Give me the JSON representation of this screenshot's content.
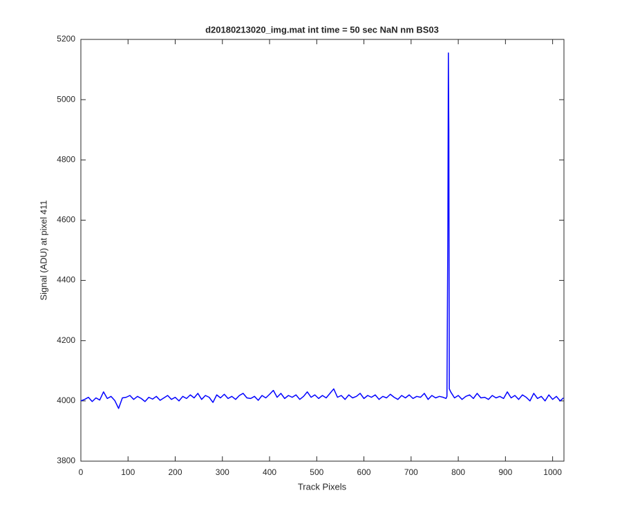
{
  "chart_data": {
    "type": "line",
    "title": "d20180213020_img.mat int time = 50 sec  NaN nm BS03",
    "xlabel": "Track Pixels",
    "ylabel": "Signal (ADU) at pixel 411",
    "color": "#0000ff",
    "x": [
      0,
      8,
      16,
      24,
      32,
      40,
      48,
      56,
      64,
      72,
      80,
      88,
      96,
      104,
      112,
      120,
      128,
      136,
      144,
      152,
      160,
      168,
      176,
      184,
      192,
      200,
      208,
      216,
      224,
      232,
      240,
      248,
      256,
      264,
      272,
      280,
      288,
      296,
      304,
      312,
      320,
      328,
      336,
      344,
      352,
      360,
      368,
      376,
      384,
      392,
      400,
      408,
      416,
      424,
      432,
      440,
      448,
      456,
      464,
      472,
      480,
      488,
      496,
      504,
      512,
      520,
      528,
      536,
      544,
      552,
      560,
      568,
      576,
      584,
      592,
      600,
      608,
      616,
      624,
      632,
      640,
      648,
      656,
      664,
      672,
      680,
      688,
      696,
      704,
      712,
      720,
      728,
      736,
      744,
      752,
      760,
      768,
      774,
      776,
      778,
      779,
      780,
      781,
      784,
      792,
      800,
      808,
      816,
      824,
      832,
      840,
      848,
      856,
      864,
      872,
      880,
      888,
      896,
      904,
      912,
      920,
      928,
      936,
      944,
      952,
      960,
      968,
      976,
      984,
      992,
      1000,
      1008,
      1016,
      1023
    ],
    "values": [
      4000,
      4005,
      4012,
      3998,
      4010,
      4003,
      4030,
      4008,
      4015,
      4001,
      3975,
      4010,
      4012,
      4018,
      4005,
      4015,
      4008,
      3998,
      4012,
      4006,
      4015,
      4002,
      4010,
      4018,
      4005,
      4012,
      4000,
      4015,
      4008,
      4020,
      4010,
      4025,
      4005,
      4018,
      4012,
      3995,
      4020,
      4010,
      4022,
      4008,
      4015,
      4005,
      4018,
      4025,
      4010,
      4008,
      4015,
      4002,
      4018,
      4010,
      4022,
      4035,
      4012,
      4025,
      4008,
      4018,
      4012,
      4020,
      4005,
      4015,
      4030,
      4012,
      4020,
      4008,
      4018,
      4010,
      4025,
      4040,
      4012,
      4018,
      4005,
      4020,
      4010,
      4015,
      4025,
      4008,
      4018,
      4012,
      4020,
      4005,
      4015,
      4010,
      4022,
      4012,
      4005,
      4018,
      4010,
      4020,
      4008,
      4015,
      4012,
      4025,
      4005,
      4018,
      4010,
      4015,
      4012,
      4008,
      4015,
      4600,
      5155,
      4900,
      4040,
      4030,
      4010,
      4018,
      4005,
      4015,
      4020,
      4008,
      4025,
      4010,
      4012,
      4005,
      4018,
      4010,
      4015,
      4008,
      4030,
      4010,
      4018,
      4005,
      4020,
      4012,
      4000,
      4025,
      4008,
      4015,
      4000,
      4020,
      4005,
      4015,
      4000,
      4010
    ],
    "xlim": [
      0,
      1024
    ],
    "ylim": [
      3800,
      5200
    ],
    "xticks": [
      0,
      100,
      200,
      300,
      400,
      500,
      600,
      700,
      800,
      900,
      1000
    ],
    "yticks": [
      3800,
      4000,
      4200,
      4400,
      4600,
      4800,
      5000,
      5200
    ]
  }
}
